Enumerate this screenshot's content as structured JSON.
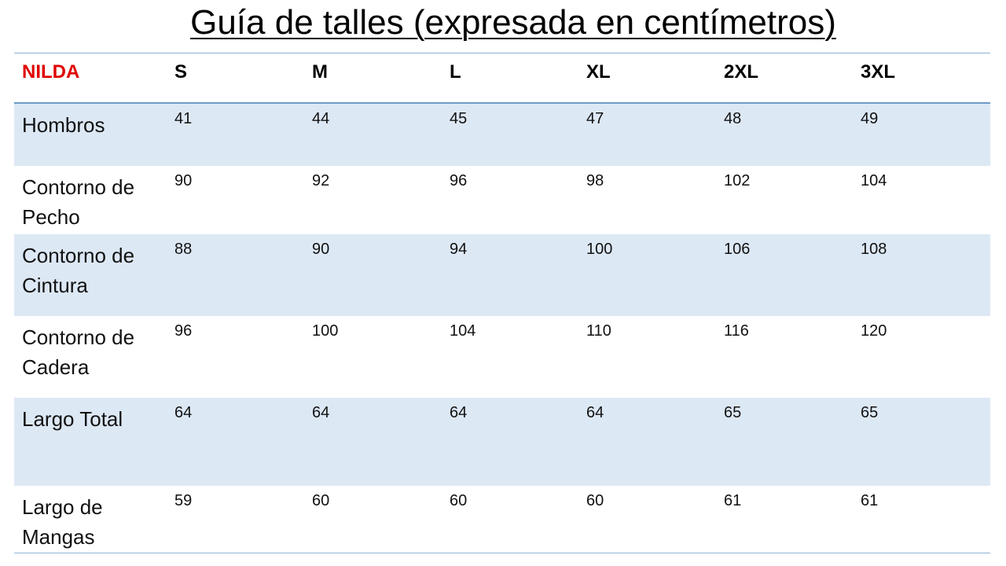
{
  "title": "Guía de talles (expresada en centímetros)",
  "table": {
    "brand": "NILDA",
    "sizes": [
      "S",
      "M",
      "L",
      "XL",
      "2XL",
      "3XL"
    ],
    "rows": [
      {
        "label": "Hombros",
        "values": [
          "41",
          "44",
          "45",
          "47",
          "48",
          "49"
        ]
      },
      {
        "label": "Contorno de Pecho",
        "values": [
          "90",
          "92",
          "96",
          "98",
          "102",
          "104"
        ]
      },
      {
        "label": "Contorno de Cintura",
        "values": [
          "88",
          "90",
          "94",
          "100",
          "106",
          "108"
        ]
      },
      {
        "label": "Contorno de Cadera",
        "values": [
          "96",
          "100",
          "104",
          "110",
          "116",
          "120"
        ]
      },
      {
        "label": "Largo Total",
        "values": [
          "64",
          "64",
          "64",
          "64",
          "65",
          "65"
        ]
      },
      {
        "label": "Largo de Mangas",
        "values": [
          "59",
          "60",
          "60",
          "60",
          "61",
          "61"
        ]
      }
    ]
  },
  "colors": {
    "brand": "#e00000",
    "row_shade": "#dde8f5",
    "rule": "#6e9bc7"
  }
}
